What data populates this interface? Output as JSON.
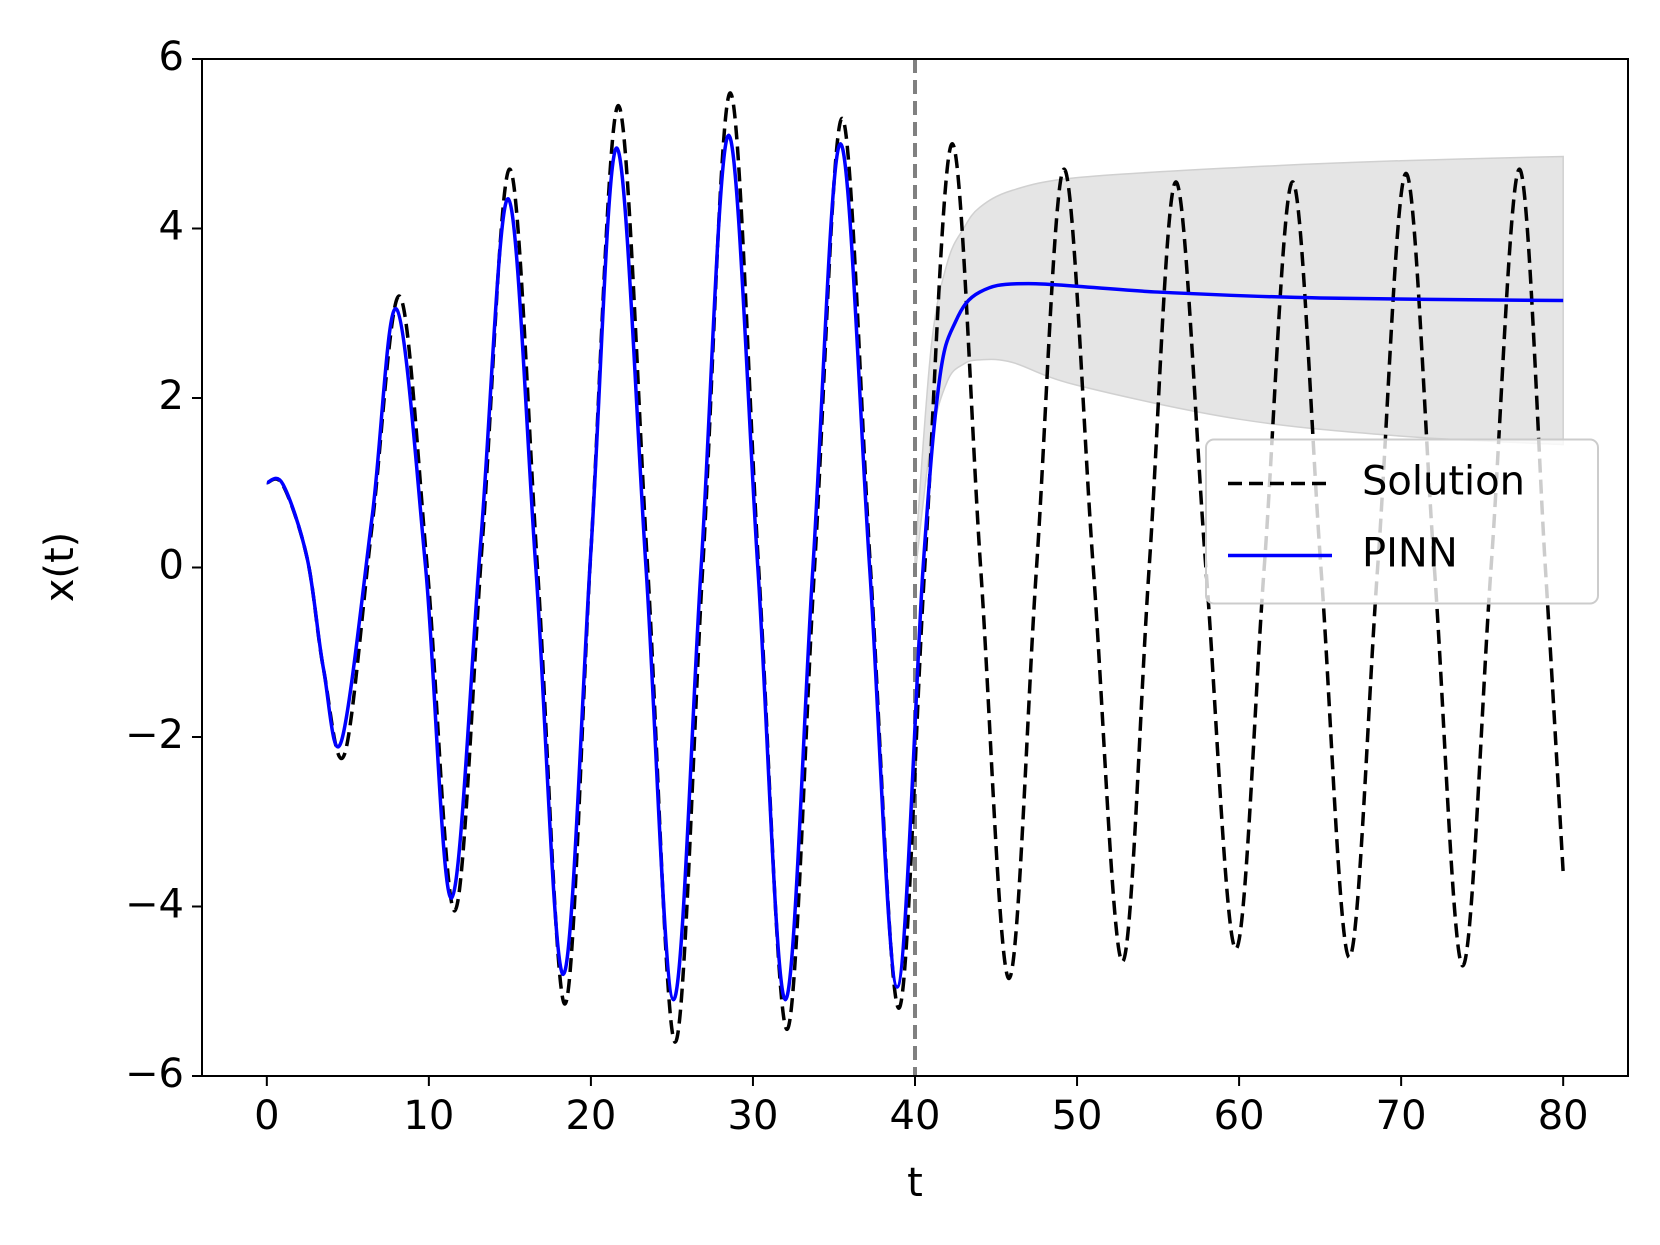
{
  "chart_data": {
    "type": "line",
    "x_label": "t",
    "y_label": "x(t)",
    "xlim": [
      -4,
      84
    ],
    "ylim": [
      -6,
      6
    ],
    "xticks": [
      0,
      10,
      20,
      30,
      40,
      50,
      60,
      70,
      80
    ],
    "yticks": [
      {
        "value": -6,
        "label": "−6"
      },
      {
        "value": -4,
        "label": "−4"
      },
      {
        "value": -2,
        "label": "−2"
      },
      0,
      2,
      4,
      6
    ],
    "legend": "center right",
    "vline": 40,
    "vline_color": "#808080",
    "series": [
      {
        "name": "Solution",
        "color": "#000000",
        "dash": true,
        "x": [
          0,
          1,
          2.5,
          3.5,
          4.8,
          6.5,
          8.2,
          9.9,
          11.6,
          13.3,
          15,
          16.7,
          18.4,
          20,
          21.7,
          23.5,
          25.2,
          26.9,
          28.6,
          30.35,
          32.1,
          33.8,
          35.5,
          37.25,
          39,
          40.6,
          42.3,
          44.05,
          45.8,
          47.5,
          49.2,
          51,
          52.8,
          54.45,
          56.1,
          57.95,
          59.8,
          61.55,
          63.3,
          65.05,
          66.8,
          68.55,
          70.3,
          72.05,
          73.8,
          75.55,
          77.3,
          78.9,
          80
        ],
        "values": [
          1.0,
          0.97,
          0.1,
          -1.2,
          -2.2,
          0.5,
          3.2,
          0,
          -4.05,
          0.3,
          4.7,
          0,
          -5.15,
          0.2,
          5.45,
          0,
          -5.6,
          0,
          5.6,
          0,
          -5.45,
          0,
          5.3,
          0,
          -5.2,
          0,
          5.0,
          0,
          -4.85,
          0,
          4.7,
          0,
          -4.65,
          0,
          4.55,
          0,
          -4.5,
          0,
          4.55,
          0,
          -4.6,
          0,
          4.65,
          0,
          -4.7,
          0,
          4.7,
          0,
          -3.6
        ]
      },
      {
        "name": "PINN",
        "color": "#0000ff",
        "dash": false,
        "x": [
          0,
          1,
          2.5,
          3.5,
          4.6,
          6.5,
          8,
          9.8,
          11.4,
          13.2,
          14.9,
          16.6,
          18.3,
          20,
          21.6,
          23.4,
          25.1,
          26.8,
          28.5,
          30.3,
          32,
          33.7,
          35.4,
          37.2,
          38.9,
          40.5,
          41.5,
          42.5,
          44,
          47,
          55,
          65,
          80
        ],
        "values": [
          1.0,
          0.98,
          0.1,
          -1.2,
          -2.05,
          0.6,
          3.05,
          0,
          -3.9,
          0.3,
          4.35,
          0,
          -4.8,
          0.2,
          4.95,
          0,
          -5.1,
          0,
          5.1,
          0,
          -5.1,
          0,
          5.0,
          0,
          -4.95,
          0,
          2.2,
          2.9,
          3.25,
          3.35,
          3.25,
          3.18,
          3.15
        ]
      }
    ],
    "band": {
      "color": "#e5e5e5",
      "x": [
        40,
        41,
        42,
        43,
        44,
        46,
        50,
        60,
        70,
        80
      ],
      "upper": [
        0.1,
        2.6,
        3.6,
        4.0,
        4.25,
        4.45,
        4.6,
        4.72,
        4.8,
        4.85
      ],
      "lower": [
        -0.1,
        1.5,
        2.2,
        2.4,
        2.45,
        2.42,
        2.15,
        1.75,
        1.55,
        1.45
      ]
    }
  }
}
